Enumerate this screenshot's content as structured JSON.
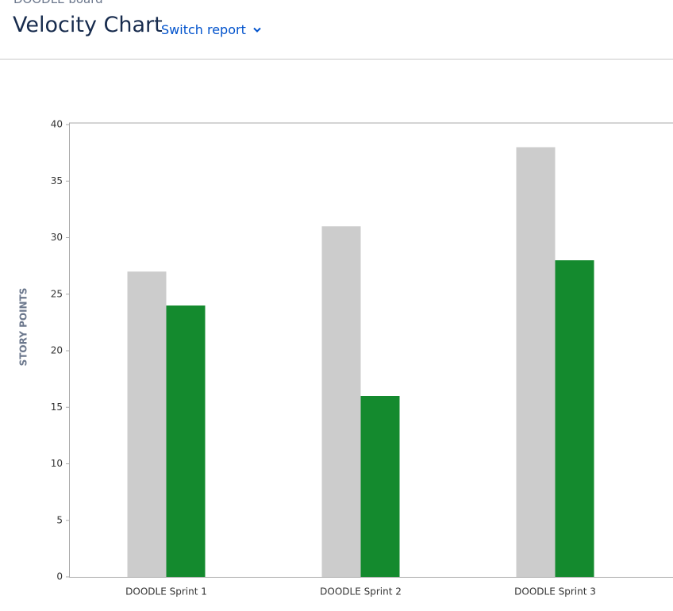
{
  "header": {
    "board": "DOODLE board",
    "title": "Velocity Chart",
    "switch": "Switch report"
  },
  "chart_data": {
    "type": "bar",
    "ylabel": "STORY POINTS",
    "categories": [
      "DOODLE Sprint 1",
      "DOODLE Sprint 2",
      "DOODLE Sprint 3"
    ],
    "series": [
      {
        "color": "#cccccc",
        "values": [
          27,
          31,
          38
        ]
      },
      {
        "color": "#148a2e",
        "values": [
          24,
          16,
          28
        ]
      }
    ],
    "ylim": [
      0,
      40
    ],
    "yticks": [
      0,
      5,
      10,
      15,
      20,
      25,
      30,
      35,
      40
    ]
  }
}
